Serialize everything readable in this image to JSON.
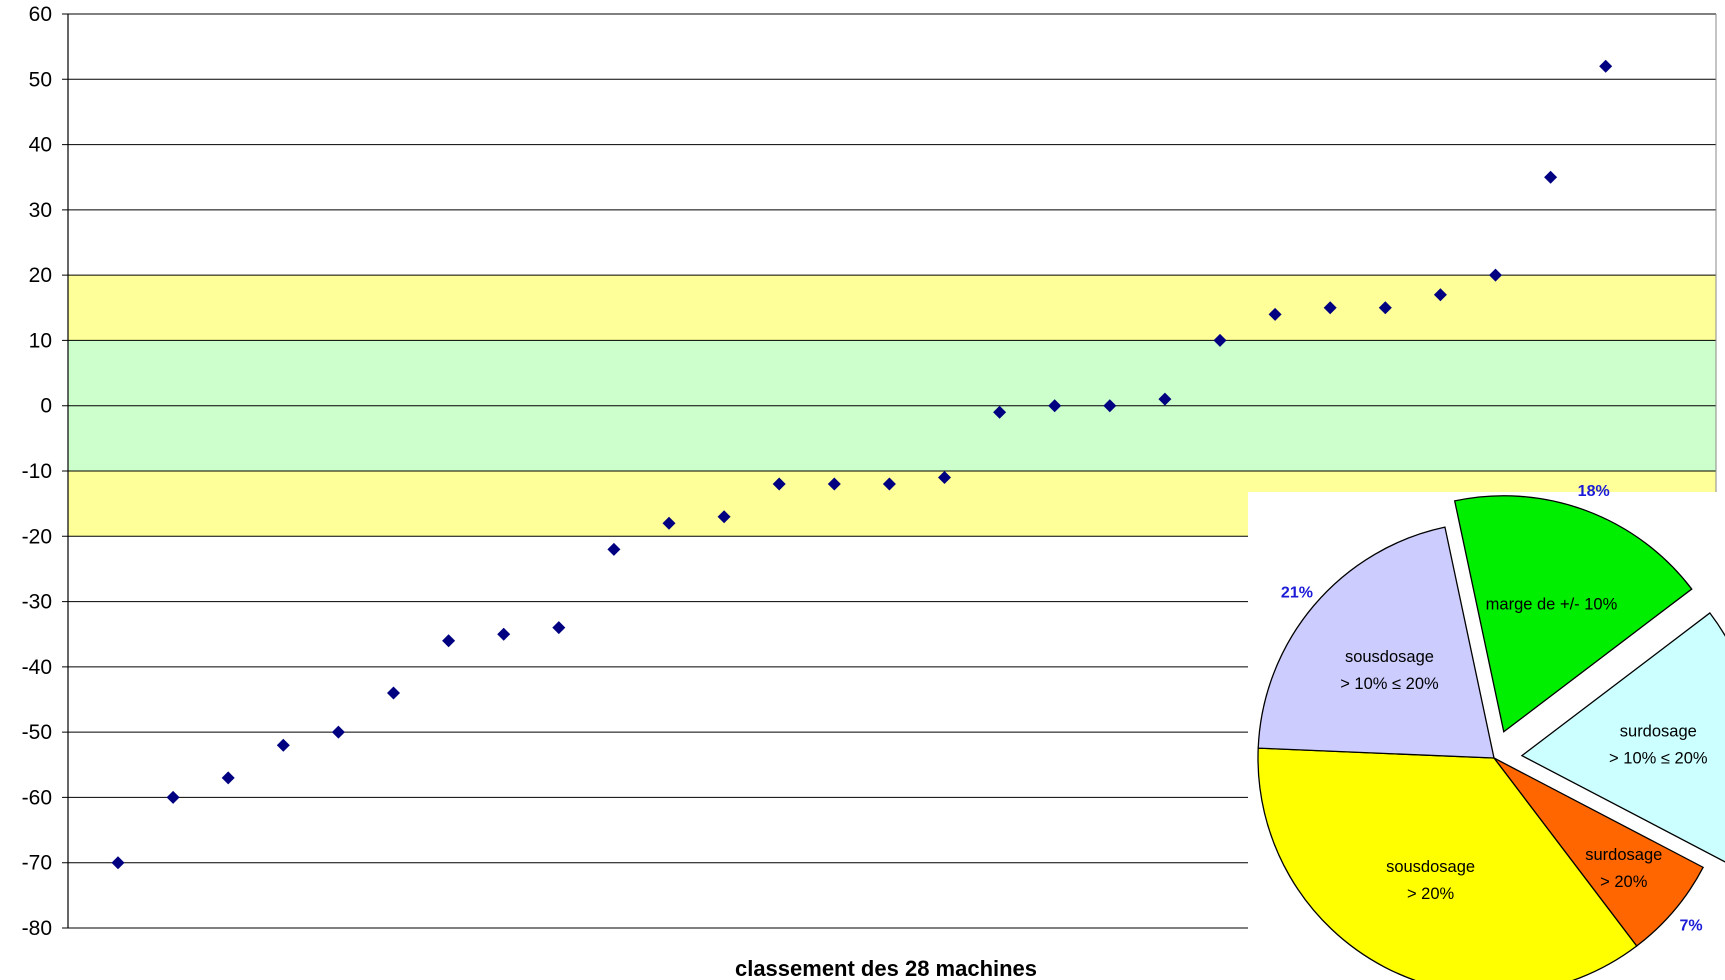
{
  "chart_data": [
    {
      "type": "scatter",
      "title": "",
      "xlabel": "classement des 28 machines",
      "ylabel": "",
      "ylim": [
        -80,
        60
      ],
      "yticks": [
        60,
        50,
        40,
        30,
        20,
        10,
        0,
        -10,
        -20,
        -30,
        -40,
        -50,
        -60,
        -70,
        -80
      ],
      "grid": true,
      "bands": [
        {
          "from": -20,
          "to": -10,
          "color": "#ffff99"
        },
        {
          "from": -10,
          "to": 10,
          "color": "#ccffcc"
        },
        {
          "from": 10,
          "to": 20,
          "color": "#ffff99"
        }
      ],
      "marker_color": "#000080",
      "x": [
        1,
        2,
        3,
        4,
        5,
        6,
        7,
        8,
        9,
        10,
        11,
        12,
        13,
        14,
        15,
        16,
        17,
        18,
        19,
        20,
        21,
        22,
        23,
        24,
        25,
        26,
        27,
        28
      ],
      "y": [
        -70,
        -60,
        -57,
        -52,
        -50,
        -44,
        -36,
        -35,
        -34,
        -22,
        -18,
        -17,
        -12,
        -12,
        -12,
        -11,
        -1,
        0,
        0,
        1,
        10,
        14,
        15,
        15,
        17,
        20,
        35,
        52
      ]
    },
    {
      "type": "pie",
      "slices": [
        {
          "label_lines": [
            "marge de +/- 10%"
          ],
          "percent_label": "18%",
          "value": 18,
          "color": "#00ee00",
          "exploded": true
        },
        {
          "label_lines": [
            "surdosage",
            "> 10%  ≤ 20%"
          ],
          "percent_label": "",
          "value": 18,
          "color": "#ccffff",
          "exploded": true
        },
        {
          "label_lines": [
            "surdosage",
            "> 20%"
          ],
          "percent_label": "7%",
          "value": 7,
          "color": "#ff6600",
          "exploded": false
        },
        {
          "label_lines": [
            "sousdosage",
            "> 20%"
          ],
          "percent_label": "",
          "value": 36,
          "color": "#ffff00",
          "exploded": false
        },
        {
          "label_lines": [
            "sousdosage",
            "> 10% ≤ 20%"
          ],
          "percent_label": "21%",
          "value": 21,
          "color": "#ccccff",
          "exploded": false
        }
      ]
    }
  ]
}
